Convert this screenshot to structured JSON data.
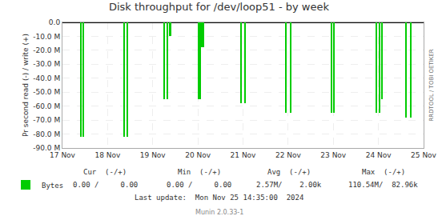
{
  "chart_data": {
    "type": "bar",
    "title": "Disk throughput for /dev/loop51 - by week",
    "ylabel": "Pr second read (-) / write (+)",
    "x": [
      1731837000,
      1731841000,
      1731920000,
      1731926000,
      1731996000,
      1732002000,
      1732006500,
      1732008000,
      1732062000,
      1732066000,
      1732068000,
      1732072000,
      1732144000,
      1732152000,
      1732230000,
      1732238000,
      1732316000,
      1732322000,
      1732402000,
      1732408000,
      1732413000,
      1732460000,
      1732468000
    ],
    "series": [
      {
        "name": "Bytes",
        "color": "#00cc00",
        "values": [
          -82000000,
          -82000000,
          -82000000,
          -82000000,
          -55000000,
          -55000000,
          -10000000,
          -10000000,
          -55000000,
          -55000000,
          -18000000,
          -18000000,
          -58000000,
          -58000000,
          -65000000,
          -65000000,
          -65000000,
          -65000000,
          -65000000,
          -65000000,
          -55000000,
          -68000000,
          -68000000
        ]
      }
    ],
    "xlim": [
      1731801600,
      1732492800
    ],
    "xticks": [
      {
        "value": 1731801600,
        "label": "17 Nov"
      },
      {
        "value": 1731888000,
        "label": "18 Nov"
      },
      {
        "value": 1731974400,
        "label": "19 Nov"
      },
      {
        "value": 1732060800,
        "label": "20 Nov"
      },
      {
        "value": 1732147200,
        "label": "21 Nov"
      },
      {
        "value": 1732233600,
        "label": "22 Nov"
      },
      {
        "value": 1732320000,
        "label": "23 Nov"
      },
      {
        "value": 1732406400,
        "label": "24 Nov"
      },
      {
        "value": 1732492800,
        "label": "25 Nov"
      }
    ],
    "ylim": [
      -90000000,
      0
    ],
    "yticks": [
      {
        "value": 0,
        "label": "0.0"
      },
      {
        "value": -10000000,
        "label": "-10.0 M"
      },
      {
        "value": -20000000,
        "label": "-20.0 M"
      },
      {
        "value": -30000000,
        "label": "-30.0 M"
      },
      {
        "value": -40000000,
        "label": "-40.0 M"
      },
      {
        "value": -50000000,
        "label": "-50.0 M"
      },
      {
        "value": -60000000,
        "label": "-60.0 M"
      },
      {
        "value": -70000000,
        "label": "-70.0 M"
      },
      {
        "value": -80000000,
        "label": "-80.0 M"
      },
      {
        "value": -90000000,
        "label": "-90.0 M"
      }
    ],
    "grid": true,
    "legend": "bottom left",
    "annotations": [
      "Cur  (-/+)",
      "Min  (-/+)",
      "Avg  (-/+)",
      "Max  (-/+)",
      "0.00 /     0.00",
      "0.00 /     0.00",
      "2.57M/    2.00k",
      "110.54M/  82.96k",
      "Last update:  Mon Nov 25 14:35:00  2024",
      "Munin 2.0.33-1",
      "RRDTOOL / TOBI OETIKER"
    ]
  }
}
